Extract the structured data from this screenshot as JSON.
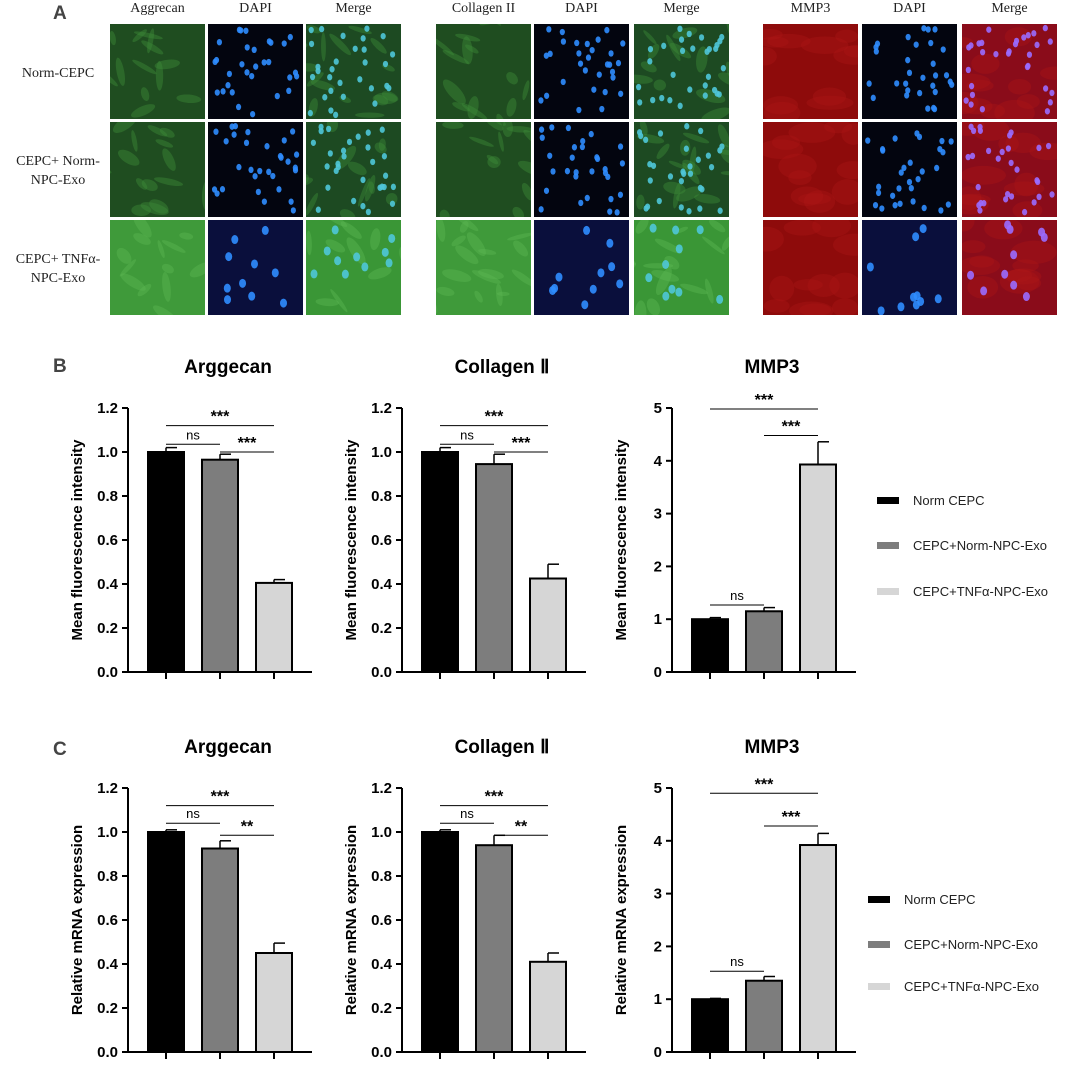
{
  "panel_labels": {
    "a": "A",
    "b": "B",
    "c": "C"
  },
  "microscopy": {
    "groups": [
      {
        "columns": [
          "Aggrecan",
          "DAPI",
          "Merge"
        ]
      },
      {
        "columns": [
          "Collagen II",
          "DAPI",
          "Merge"
        ]
      },
      {
        "columns": [
          "MMP3",
          "DAPI",
          "Merge"
        ]
      }
    ],
    "rows": [
      "Norm-CEPC",
      "CEPC+ Norm-NPC-Exo",
      "CEPC+ TNFα-NPC-Exo"
    ],
    "colors": {
      "marker_green": "#2f7a2c",
      "marker_red": "#9b1010",
      "dapi_blue": "#1d6fe0",
      "background": "#05070f"
    }
  },
  "legend": [
    "Norm CEPC",
    "CEPC+Norm-NPC-Exo",
    "CEPC+TNFα-NPC-Exo"
  ],
  "colors": {
    "bar1": "#000000",
    "bar2": "#7d7d7d",
    "bar3": "#d6d6d6"
  },
  "chart_data": [
    {
      "type": "bar",
      "panel": "B",
      "title": "Arggecan",
      "ylabel": "Mean fluorescence intensity",
      "ylim": [
        0,
        1.2
      ],
      "yticks": [
        "0.0",
        "0.2",
        "0.4",
        "0.6",
        "0.8",
        "1.0",
        "1.2"
      ],
      "categories": [
        "Norm CEPC",
        "CEPC+Norm-NPC-Exo",
        "CEPC+TNFα-NPC-Exo"
      ],
      "values": [
        1.0,
        0.965,
        0.405
      ],
      "errors": [
        0.02,
        0.025,
        0.015
      ],
      "significance": [
        {
          "from": 0,
          "to": 1,
          "label": "ns",
          "level": 1.035
        },
        {
          "from": 1,
          "to": 2,
          "label": "***",
          "level": 1.0
        },
        {
          "from": 0,
          "to": 2,
          "label": "***",
          "level": 1.12
        }
      ]
    },
    {
      "type": "bar",
      "panel": "B",
      "title": "Collagen Ⅱ",
      "ylabel": "Mean fluorescence intensity",
      "ylim": [
        0,
        1.2
      ],
      "yticks": [
        "0.0",
        "0.2",
        "0.4",
        "0.6",
        "0.8",
        "1.0",
        "1.2"
      ],
      "categories": [
        "Norm CEPC",
        "CEPC+Norm-NPC-Exo",
        "CEPC+TNFα-NPC-Exo"
      ],
      "values": [
        1.0,
        0.945,
        0.425
      ],
      "errors": [
        0.02,
        0.045,
        0.065
      ],
      "significance": [
        {
          "from": 0,
          "to": 1,
          "label": "ns",
          "level": 1.035
        },
        {
          "from": 1,
          "to": 2,
          "label": "***",
          "level": 1.0
        },
        {
          "from": 0,
          "to": 2,
          "label": "***",
          "level": 1.12
        }
      ]
    },
    {
      "type": "bar",
      "panel": "B",
      "title": "MMP3",
      "ylabel": "Mean fluorescence intensity",
      "ylim": [
        0,
        5
      ],
      "yticks": [
        "0",
        "1",
        "2",
        "3",
        "4",
        "5"
      ],
      "categories": [
        "Norm CEPC",
        "CEPC+Norm-NPC-Exo",
        "CEPC+TNFα-NPC-Exo"
      ],
      "values": [
        1.0,
        1.15,
        3.93
      ],
      "errors": [
        0.03,
        0.07,
        0.43
      ],
      "significance": [
        {
          "from": 0,
          "to": 1,
          "label": "ns",
          "level": 1.27
        },
        {
          "from": 1,
          "to": 2,
          "label": "***",
          "level": 4.48
        },
        {
          "from": 0,
          "to": 2,
          "label": "***",
          "level": 4.98
        }
      ]
    },
    {
      "type": "bar",
      "panel": "C",
      "title": "Arggecan",
      "ylabel": "Relative mRNA expression",
      "ylim": [
        0,
        1.2
      ],
      "yticks": [
        "0.0",
        "0.2",
        "0.4",
        "0.6",
        "0.8",
        "1.0",
        "1.2"
      ],
      "categories": [
        "Norm CEPC",
        "CEPC+Norm-NPC-Exo",
        "CEPC+TNFα-NPC-Exo"
      ],
      "values": [
        1.0,
        0.925,
        0.45
      ],
      "errors": [
        0.01,
        0.035,
        0.045
      ],
      "significance": [
        {
          "from": 0,
          "to": 1,
          "label": "ns",
          "level": 1.04
        },
        {
          "from": 1,
          "to": 2,
          "label": "**",
          "level": 0.985
        },
        {
          "from": 0,
          "to": 2,
          "label": "***",
          "level": 1.12
        }
      ]
    },
    {
      "type": "bar",
      "panel": "C",
      "title": "Collagen Ⅱ",
      "ylabel": "Relative mRNA expression",
      "ylim": [
        0,
        1.2
      ],
      "yticks": [
        "0.0",
        "0.2",
        "0.4",
        "0.6",
        "0.8",
        "1.0",
        "1.2"
      ],
      "categories": [
        "Norm CEPC",
        "CEPC+Norm-NPC-Exo",
        "CEPC+TNFα-NPC-Exo"
      ],
      "values": [
        1.0,
        0.94,
        0.41
      ],
      "errors": [
        0.01,
        0.045,
        0.04
      ],
      "significance": [
        {
          "from": 0,
          "to": 1,
          "label": "ns",
          "level": 1.04
        },
        {
          "from": 1,
          "to": 2,
          "label": "**",
          "level": 0.985
        },
        {
          "from": 0,
          "to": 2,
          "label": "***",
          "level": 1.12
        }
      ]
    },
    {
      "type": "bar",
      "panel": "C",
      "title": "MMP3",
      "ylabel": "Relative mRNA expression",
      "ylim": [
        0,
        5
      ],
      "yticks": [
        "0",
        "1",
        "2",
        "3",
        "4",
        "5"
      ],
      "categories": [
        "Norm CEPC",
        "CEPC+Norm-NPC-Exo",
        "CEPC+TNFα-NPC-Exo"
      ],
      "values": [
        1.0,
        1.35,
        3.92
      ],
      "errors": [
        0.015,
        0.08,
        0.22
      ],
      "significance": [
        {
          "from": 0,
          "to": 1,
          "label": "ns",
          "level": 1.53
        },
        {
          "from": 1,
          "to": 2,
          "label": "***",
          "level": 4.28
        },
        {
          "from": 0,
          "to": 2,
          "label": "***",
          "level": 4.9
        }
      ]
    }
  ]
}
